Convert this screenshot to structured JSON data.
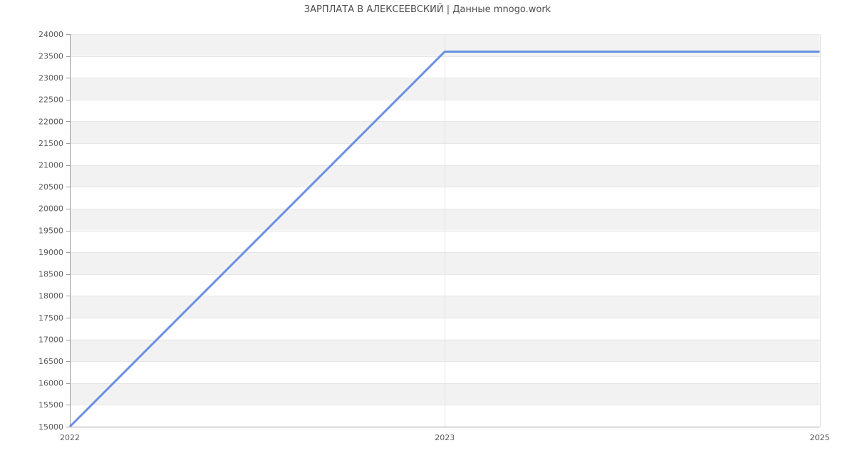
{
  "chart_data": {
    "type": "line",
    "title": "ЗАРПЛАТА В АЛЕКСЕЕВСКИЙ | Данные mnogo.work",
    "categories": [
      "2022",
      "2023",
      "2025"
    ],
    "values": [
      15000,
      23600,
      23600
    ],
    "yticks": [
      15000,
      15500,
      16000,
      16500,
      17000,
      17500,
      18000,
      18500,
      19000,
      19500,
      20000,
      20500,
      21000,
      21500,
      22000,
      22500,
      23000,
      23500,
      24000
    ],
    "ylim": [
      15000,
      24000
    ],
    "xlabel": "",
    "ylabel": "",
    "grid": true,
    "legend": "none",
    "alternating_bands": true,
    "colors": {
      "line": "#6a90e2",
      "band": "#f2f2f2",
      "grid": "#e6e6e6",
      "axis": "#999999",
      "label": "#5a5a5a",
      "title": "#4d4d4d",
      "background": "#ffffff"
    }
  }
}
